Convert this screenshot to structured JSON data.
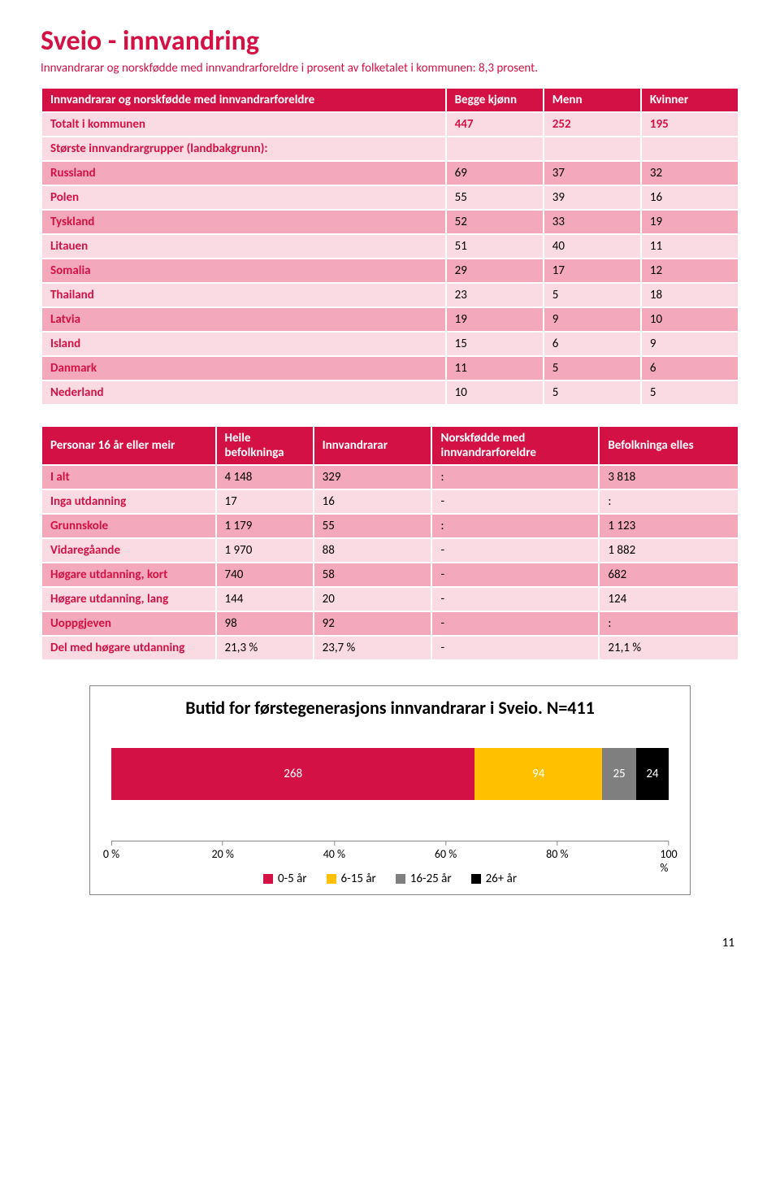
{
  "title": "Sveio - innvandring",
  "title_color": "#d31145",
  "subtitle": "Innvandrarar og norskfødde med innvandrarforeldre i prosent av folketalet i kommunen: 8,3 prosent.",
  "subtitle_color": "#d31145",
  "table1": {
    "header": [
      "Innvandrarar og norskfødde med innvandrarforeldre",
      "Begge kjønn",
      "Menn",
      "Kvinner"
    ],
    "rows": [
      {
        "style": "sec",
        "cells": [
          "Totalt i kommunen",
          "447",
          "252",
          "195"
        ]
      },
      {
        "style": "sec",
        "cells": [
          "Største innvandrargrupper (landbakgrunn):",
          "",
          "",
          ""
        ]
      },
      {
        "style": "r1",
        "cells": [
          "Russland",
          "69",
          "37",
          "32"
        ]
      },
      {
        "style": "r2",
        "cells": [
          "Polen",
          "55",
          "39",
          "16"
        ]
      },
      {
        "style": "r1",
        "cells": [
          "Tyskland",
          "52",
          "33",
          "19"
        ]
      },
      {
        "style": "r2",
        "cells": [
          "Litauen",
          "51",
          "40",
          "11"
        ]
      },
      {
        "style": "r1",
        "cells": [
          "Somalia",
          "29",
          "17",
          "12"
        ]
      },
      {
        "style": "r2",
        "cells": [
          "Thailand",
          "23",
          "5",
          "18"
        ]
      },
      {
        "style": "r1",
        "cells": [
          "Latvia",
          "19",
          "9",
          "10"
        ]
      },
      {
        "style": "r2",
        "cells": [
          "Island",
          "15",
          "6",
          "9"
        ]
      },
      {
        "style": "r1",
        "cells": [
          "Danmark",
          "11",
          "5",
          "6"
        ]
      },
      {
        "style": "r2",
        "cells": [
          "Nederland",
          "10",
          "5",
          "5"
        ]
      }
    ]
  },
  "table2": {
    "header": [
      "Personar 16 år eller meir",
      "Heile befolkninga",
      "Innvandrarar",
      "Norskfødde med innvandrarforeldre",
      "Befolkninga elles"
    ],
    "rows": [
      {
        "style": "r1",
        "cells": [
          "I alt",
          "4 148",
          "329",
          ":",
          "3 818"
        ]
      },
      {
        "style": "r2",
        "cells": [
          "Inga utdanning",
          "17",
          "16",
          "-",
          ":"
        ]
      },
      {
        "style": "r1",
        "cells": [
          "Grunnskole",
          "1 179",
          "55",
          ":",
          "1 123"
        ]
      },
      {
        "style": "r2",
        "cells": [
          "Vidaregåande",
          "1 970",
          "88",
          "-",
          "1 882"
        ]
      },
      {
        "style": "r1",
        "cells": [
          "Høgare utdanning, kort",
          "740",
          "58",
          "-",
          "682"
        ]
      },
      {
        "style": "r2",
        "cells": [
          "Høgare utdanning, lang",
          "144",
          "20",
          "-",
          "124"
        ]
      },
      {
        "style": "r1",
        "cells": [
          "Uoppgjeven",
          "98",
          "92",
          "-",
          ":"
        ]
      },
      {
        "style": "r2",
        "cells": [
          "Del med høgare utdanning",
          "21,3 %",
          "23,7 %",
          "-",
          "21,1 %"
        ]
      }
    ]
  },
  "chart": {
    "title": "Butid for førstegenerasjons innvandrarar i Sveio. N=411",
    "total": 411,
    "segments": [
      {
        "label": "268",
        "value": 268,
        "color": "#d31145",
        "text_color": "#ffffff"
      },
      {
        "label": "94",
        "value": 94,
        "color": "#ffc000",
        "text_color": "#ffffff"
      },
      {
        "label": "25",
        "value": 25,
        "color": "#7f7f7f",
        "text_color": "#ffffff"
      },
      {
        "label": "24",
        "value": 24,
        "color": "#000000",
        "text_color": "#ffffff"
      }
    ],
    "axis_ticks": [
      "0 %",
      "20 %",
      "40 %",
      "60 %",
      "80 %",
      "100 %"
    ],
    "legend": [
      {
        "label": "0-5 år",
        "color": "#d31145"
      },
      {
        "label": "6-15 år",
        "color": "#ffc000"
      },
      {
        "label": "16-25 år",
        "color": "#7f7f7f"
      },
      {
        "label": "26+ år",
        "color": "#000000"
      }
    ]
  },
  "page_number": "11"
}
